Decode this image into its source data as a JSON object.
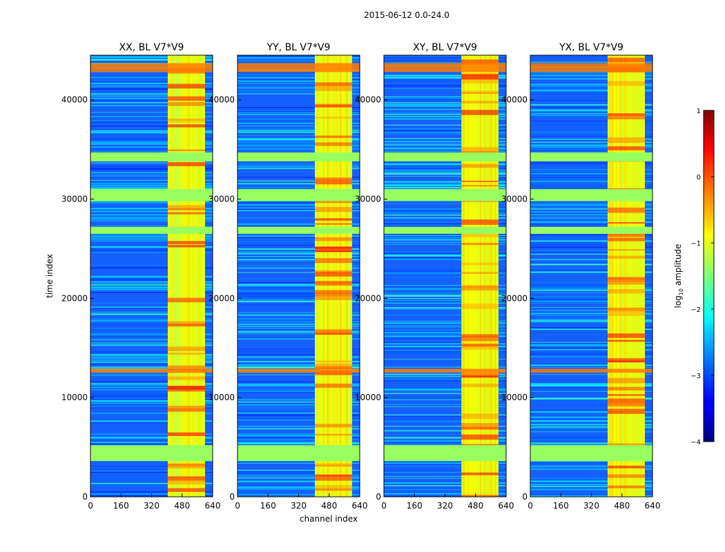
{
  "figure": {
    "suptitle": "2015-06-12 0.0-24.0",
    "xlabel": "channel index",
    "ylabel": "time index",
    "colorbar_label": "log10 amplitude",
    "colorbar_label_base": "log",
    "colorbar_label_sub": "10",
    "colorbar_label_rest": " amplitude"
  },
  "chart_data": {
    "type": "heatmap",
    "colormap": "jet",
    "panels": [
      {
        "title": "XX, BL V7*V9"
      },
      {
        "title": "YY, BL V7*V9"
      },
      {
        "title": "XY, BL V7*V9"
      },
      {
        "title": "YX, BL V7*V9"
      }
    ],
    "xlim": [
      0,
      640
    ],
    "ylim": [
      0,
      44500
    ],
    "xticks": [
      0,
      160,
      320,
      480,
      640
    ],
    "yticks": [
      0,
      10000,
      20000,
      30000,
      40000
    ],
    "xticklabels": [
      "0",
      "160",
      "320",
      "480",
      "640"
    ],
    "yticklabels": [
      "0",
      "10000",
      "20000",
      "30000",
      "40000"
    ],
    "colorbar": {
      "range": [
        -4,
        1
      ],
      "ticks": [
        1,
        0,
        -1,
        -2,
        -3,
        -4
      ],
      "ticklabels": [
        "1",
        "0",
        "−1",
        "−2",
        "−3",
        "−4"
      ]
    },
    "flagged_time_bands": [
      [
        3600,
        5200
      ],
      [
        26500,
        27200
      ],
      [
        29800,
        31000
      ],
      [
        33800,
        34700
      ]
    ],
    "bright_time_bands": [
      [
        12500,
        12900
      ],
      [
        42800,
        43700
      ]
    ],
    "rfi_channel_range": [
      405,
      600
    ]
  }
}
